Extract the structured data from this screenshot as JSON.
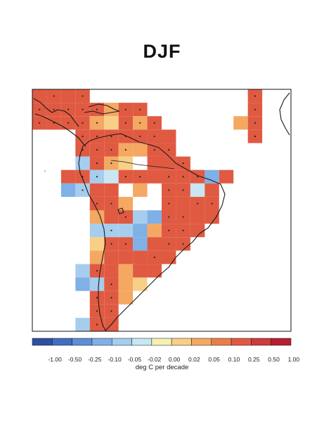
{
  "title": "DJF",
  "colorbar": {
    "unit_label": "deg C per decade",
    "ticks": [
      "-1.00",
      "-0.50",
      "-0.25",
      "-0.10",
      "-0.05",
      "-0.02",
      "0.00",
      "0.02",
      "0.05",
      "0.10",
      "0.25",
      "0.50",
      "1.00"
    ],
    "colors": [
      "#2f4fa0",
      "#3f6fc0",
      "#5b8fd8",
      "#7fb0e6",
      "#a5cdee",
      "#c9e6f3",
      "#f6efb3",
      "#f8cf86",
      "#f4a862",
      "#ec7d4b",
      "#e05a42",
      "#cf3a3a",
      "#b51f31"
    ]
  },
  "chart_data": {
    "type": "heatmap",
    "title": "DJF",
    "variable_units": "deg C per decade",
    "levels": [
      -1.0,
      -0.5,
      -0.25,
      -0.1,
      -0.05,
      -0.02,
      0.0,
      0.02,
      0.05,
      0.1,
      0.25,
      0.5,
      1.0
    ],
    "lon_range": [
      -120,
      -30
    ],
    "lat_range": [
      -55,
      35
    ],
    "grid_step_deg": 5,
    "significance_marker": "dot",
    "cells": [
      {
        "lon": -117.5,
        "lat": 32.5,
        "value": 0.25,
        "sig": false
      },
      {
        "lon": -112.5,
        "lat": 32.5,
        "value": 0.25,
        "sig": true
      },
      {
        "lon": -107.5,
        "lat": 32.5,
        "value": 0.3,
        "sig": false
      },
      {
        "lon": -102.5,
        "lat": 32.5,
        "value": 0.25,
        "sig": true
      },
      {
        "lon": -117.5,
        "lat": 27.5,
        "value": 0.3,
        "sig": true
      },
      {
        "lon": -112.5,
        "lat": 27.5,
        "value": 0.25,
        "sig": true
      },
      {
        "lon": -107.5,
        "lat": 27.5,
        "value": 0.25,
        "sig": true
      },
      {
        "lon": -102.5,
        "lat": 27.5,
        "value": 0.25,
        "sig": true
      },
      {
        "lon": -97.5,
        "lat": 27.5,
        "value": 0.3,
        "sig": true
      },
      {
        "lon": -92.5,
        "lat": 27.5,
        "value": 0.05,
        "sig": false
      },
      {
        "lon": -87.5,
        "lat": 27.5,
        "value": 0.25,
        "sig": true
      },
      {
        "lon": -82.5,
        "lat": 27.5,
        "value": 0.25,
        "sig": true
      },
      {
        "lon": -117.5,
        "lat": 22.5,
        "value": 0.3,
        "sig": true
      },
      {
        "lon": -112.5,
        "lat": 22.5,
        "value": 0.25,
        "sig": true
      },
      {
        "lon": -107.5,
        "lat": 22.5,
        "value": 0.25,
        "sig": true
      },
      {
        "lon": -102.5,
        "lat": 22.5,
        "value": 0.25,
        "sig": true
      },
      {
        "lon": -97.5,
        "lat": 22.5,
        "value": 0.05,
        "sig": true
      },
      {
        "lon": -92.5,
        "lat": 22.5,
        "value": 0.02,
        "sig": false
      },
      {
        "lon": -87.5,
        "lat": 22.5,
        "value": 0.25,
        "sig": true
      },
      {
        "lon": -82.5,
        "lat": 22.5,
        "value": 0.05,
        "sig": true
      },
      {
        "lon": -77.5,
        "lat": 22.5,
        "value": 0.25,
        "sig": true
      },
      {
        "lon": -102.5,
        "lat": 17.5,
        "value": 0.25,
        "sig": true
      },
      {
        "lon": -97.5,
        "lat": 17.5,
        "value": 0.25,
        "sig": true
      },
      {
        "lon": -92.5,
        "lat": 17.5,
        "value": 0.25,
        "sig": true
      },
      {
        "lon": -87.5,
        "lat": 17.5,
        "value": 0.25,
        "sig": true
      },
      {
        "lon": -82.5,
        "lat": 17.5,
        "value": 0.25,
        "sig": true
      },
      {
        "lon": -77.5,
        "lat": 17.5,
        "value": 0.25,
        "sig": true
      },
      {
        "lon": -72.5,
        "lat": 17.5,
        "value": 0.3,
        "sig": false
      },
      {
        "lon": -102.5,
        "lat": 12.5,
        "value": 0.25,
        "sig": true
      },
      {
        "lon": -97.5,
        "lat": 12.5,
        "value": 0.25,
        "sig": true
      },
      {
        "lon": -92.5,
        "lat": 12.5,
        "value": 0.25,
        "sig": true
      },
      {
        "lon": -87.5,
        "lat": 12.5,
        "value": 0.05,
        "sig": true
      },
      {
        "lon": -82.5,
        "lat": 12.5,
        "value": 0.05,
        "sig": false
      },
      {
        "lon": -77.5,
        "lat": 12.5,
        "value": 0.25,
        "sig": true
      },
      {
        "lon": -72.5,
        "lat": 12.5,
        "value": 0.25,
        "sig": true
      },
      {
        "lon": -102.5,
        "lat": 7.5,
        "value": -0.05,
        "sig": false
      },
      {
        "lon": -97.5,
        "lat": 7.5,
        "value": 0.25,
        "sig": true
      },
      {
        "lon": -92.5,
        "lat": 7.5,
        "value": 0.05,
        "sig": true
      },
      {
        "lon": -87.5,
        "lat": 7.5,
        "value": 0.03,
        "sig": false
      },
      {
        "lon": -77.5,
        "lat": 7.5,
        "value": 0.3,
        "sig": false
      },
      {
        "lon": -72.5,
        "lat": 7.5,
        "value": 0.25,
        "sig": false
      },
      {
        "lon": -67.5,
        "lat": 7.5,
        "value": 0.25,
        "sig": true
      },
      {
        "lon": -107.5,
        "lat": 2.5,
        "value": 0.25,
        "sig": false
      },
      {
        "lon": -102.5,
        "lat": 2.5,
        "value": 0.25,
        "sig": true
      },
      {
        "lon": -97.5,
        "lat": 2.5,
        "value": -0.05,
        "sig": true
      },
      {
        "lon": -92.5,
        "lat": 2.5,
        "value": -0.02,
        "sig": false
      },
      {
        "lon": -87.5,
        "lat": 2.5,
        "value": 0.25,
        "sig": true
      },
      {
        "lon": -82.5,
        "lat": 2.5,
        "value": 0.25,
        "sig": true
      },
      {
        "lon": -77.5,
        "lat": 2.5,
        "value": 0.3,
        "sig": false
      },
      {
        "lon": -72.5,
        "lat": 2.5,
        "value": 0.25,
        "sig": true
      },
      {
        "lon": -67.5,
        "lat": 2.5,
        "value": 0.25,
        "sig": true
      },
      {
        "lon": -62.5,
        "lat": 2.5,
        "value": 0.25,
        "sig": true
      },
      {
        "lon": -57.5,
        "lat": 2.5,
        "value": -0.1,
        "sig": false
      },
      {
        "lon": -52.5,
        "lat": 2.5,
        "value": 0.25,
        "sig": false
      },
      {
        "lon": -107.5,
        "lat": -2.5,
        "value": -0.1,
        "sig": false
      },
      {
        "lon": -102.5,
        "lat": -2.5,
        "value": -0.05,
        "sig": true
      },
      {
        "lon": -97.5,
        "lat": -2.5,
        "value": 0.25,
        "sig": false
      },
      {
        "lon": -92.5,
        "lat": -2.5,
        "value": 0.25,
        "sig": false
      },
      {
        "lon": -82.5,
        "lat": -2.5,
        "value": 0.05,
        "sig": false
      },
      {
        "lon": -72.5,
        "lat": -2.5,
        "value": 0.25,
        "sig": true
      },
      {
        "lon": -67.5,
        "lat": -2.5,
        "value": 0.25,
        "sig": true
      },
      {
        "lon": -62.5,
        "lat": -2.5,
        "value": -0.02,
        "sig": false
      },
      {
        "lon": -57.5,
        "lat": -2.5,
        "value": 0.25,
        "sig": false
      },
      {
        "lon": -97.5,
        "lat": -7.5,
        "value": 0.25,
        "sig": true
      },
      {
        "lon": -92.5,
        "lat": -7.5,
        "value": 0.25,
        "sig": true
      },
      {
        "lon": -87.5,
        "lat": -7.5,
        "value": 0.05,
        "sig": false
      },
      {
        "lon": -72.5,
        "lat": -7.5,
        "value": 0.3,
        "sig": true
      },
      {
        "lon": -67.5,
        "lat": -7.5,
        "value": 0.25,
        "sig": false
      },
      {
        "lon": -62.5,
        "lat": -7.5,
        "value": 0.25,
        "sig": true
      },
      {
        "lon": -57.5,
        "lat": -7.5,
        "value": 0.25,
        "sig": true
      },
      {
        "lon": -97.5,
        "lat": -12.5,
        "value": 0.05,
        "sig": false
      },
      {
        "lon": -92.5,
        "lat": -12.5,
        "value": 0.25,
        "sig": false
      },
      {
        "lon": -87.5,
        "lat": -12.5,
        "value": 0.3,
        "sig": true
      },
      {
        "lon": -82.5,
        "lat": -12.5,
        "value": -0.05,
        "sig": false
      },
      {
        "lon": -77.5,
        "lat": -12.5,
        "value": -0.1,
        "sig": false
      },
      {
        "lon": -72.5,
        "lat": -12.5,
        "value": 0.3,
        "sig": true
      },
      {
        "lon": -67.5,
        "lat": -12.5,
        "value": 0.3,
        "sig": true
      },
      {
        "lon": -62.5,
        "lat": -12.5,
        "value": 0.25,
        "sig": false
      },
      {
        "lon": -57.5,
        "lat": -12.5,
        "value": 0.25,
        "sig": false
      },
      {
        "lon": -97.5,
        "lat": -17.5,
        "value": -0.05,
        "sig": false
      },
      {
        "lon": -92.5,
        "lat": -17.5,
        "value": -0.05,
        "sig": true
      },
      {
        "lon": -87.5,
        "lat": -17.5,
        "value": -0.05,
        "sig": false
      },
      {
        "lon": -82.5,
        "lat": -17.5,
        "value": -0.1,
        "sig": false
      },
      {
        "lon": -77.5,
        "lat": -17.5,
        "value": 0.05,
        "sig": false
      },
      {
        "lon": -72.5,
        "lat": -17.5,
        "value": 0.3,
        "sig": true
      },
      {
        "lon": -67.5,
        "lat": -17.5,
        "value": 0.3,
        "sig": true
      },
      {
        "lon": -62.5,
        "lat": -17.5,
        "value": 0.25,
        "sig": false
      },
      {
        "lon": -97.5,
        "lat": -22.5,
        "value": 0.02,
        "sig": false
      },
      {
        "lon": -92.5,
        "lat": -22.5,
        "value": 0.25,
        "sig": true
      },
      {
        "lon": -87.5,
        "lat": -22.5,
        "value": 0.25,
        "sig": true
      },
      {
        "lon": -82.5,
        "lat": -22.5,
        "value": -0.1,
        "sig": false
      },
      {
        "lon": -77.5,
        "lat": -22.5,
        "value": 0.25,
        "sig": false
      },
      {
        "lon": -72.5,
        "lat": -22.5,
        "value": 0.3,
        "sig": true
      },
      {
        "lon": -67.5,
        "lat": -22.5,
        "value": 0.3,
        "sig": true
      },
      {
        "lon": -97.5,
        "lat": -27.5,
        "value": 0.05,
        "sig": false
      },
      {
        "lon": -92.5,
        "lat": -27.5,
        "value": 0.25,
        "sig": false
      },
      {
        "lon": -87.5,
        "lat": -27.5,
        "value": 0.25,
        "sig": false
      },
      {
        "lon": -82.5,
        "lat": -27.5,
        "value": 0.25,
        "sig": false
      },
      {
        "lon": -77.5,
        "lat": -27.5,
        "value": 0.25,
        "sig": true
      },
      {
        "lon": -72.5,
        "lat": -27.5,
        "value": 0.25,
        "sig": false
      },
      {
        "lon": -102.5,
        "lat": -32.5,
        "value": -0.05,
        "sig": false
      },
      {
        "lon": -97.5,
        "lat": -32.5,
        "value": 0.25,
        "sig": true
      },
      {
        "lon": -92.5,
        "lat": -32.5,
        "value": 0.25,
        "sig": false
      },
      {
        "lon": -87.5,
        "lat": -32.5,
        "value": 0.05,
        "sig": false
      },
      {
        "lon": -82.5,
        "lat": -32.5,
        "value": 0.25,
        "sig": false
      },
      {
        "lon": -77.5,
        "lat": -32.5,
        "value": 0.25,
        "sig": false
      },
      {
        "lon": -102.5,
        "lat": -37.5,
        "value": -0.1,
        "sig": false
      },
      {
        "lon": -97.5,
        "lat": -37.5,
        "value": -0.05,
        "sig": false
      },
      {
        "lon": -92.5,
        "lat": -37.5,
        "value": 0.25,
        "sig": true
      },
      {
        "lon": -87.5,
        "lat": -37.5,
        "value": 0.05,
        "sig": false
      },
      {
        "lon": -82.5,
        "lat": -37.5,
        "value": 0.03,
        "sig": false
      },
      {
        "lon": -97.5,
        "lat": -42.5,
        "value": 0.25,
        "sig": true
      },
      {
        "lon": -92.5,
        "lat": -42.5,
        "value": 0.25,
        "sig": true
      },
      {
        "lon": -87.5,
        "lat": -42.5,
        "value": 0.05,
        "sig": false
      },
      {
        "lon": -97.5,
        "lat": -47.5,
        "value": 0.25,
        "sig": true
      },
      {
        "lon": -92.5,
        "lat": -47.5,
        "value": 0.25,
        "sig": true
      },
      {
        "lon": -102.5,
        "lat": -52.5,
        "value": -0.05,
        "sig": false
      },
      {
        "lon": -97.5,
        "lat": -52.5,
        "value": 0.25,
        "sig": true
      },
      {
        "lon": -92.5,
        "lat": -52.5,
        "value": 0.25,
        "sig": false
      },
      {
        "lon": -42.5,
        "lat": 32.5,
        "value": 0.25,
        "sig": true
      },
      {
        "lon": -42.5,
        "lat": 27.5,
        "value": 0.25,
        "sig": true
      },
      {
        "lon": -47.5,
        "lat": 22.5,
        "value": 0.05,
        "sig": false
      },
      {
        "lon": -42.5,
        "lat": 22.5,
        "value": 0.25,
        "sig": true
      },
      {
        "lon": -42.5,
        "lat": 17.5,
        "value": 0.3,
        "sig": true
      }
    ]
  }
}
